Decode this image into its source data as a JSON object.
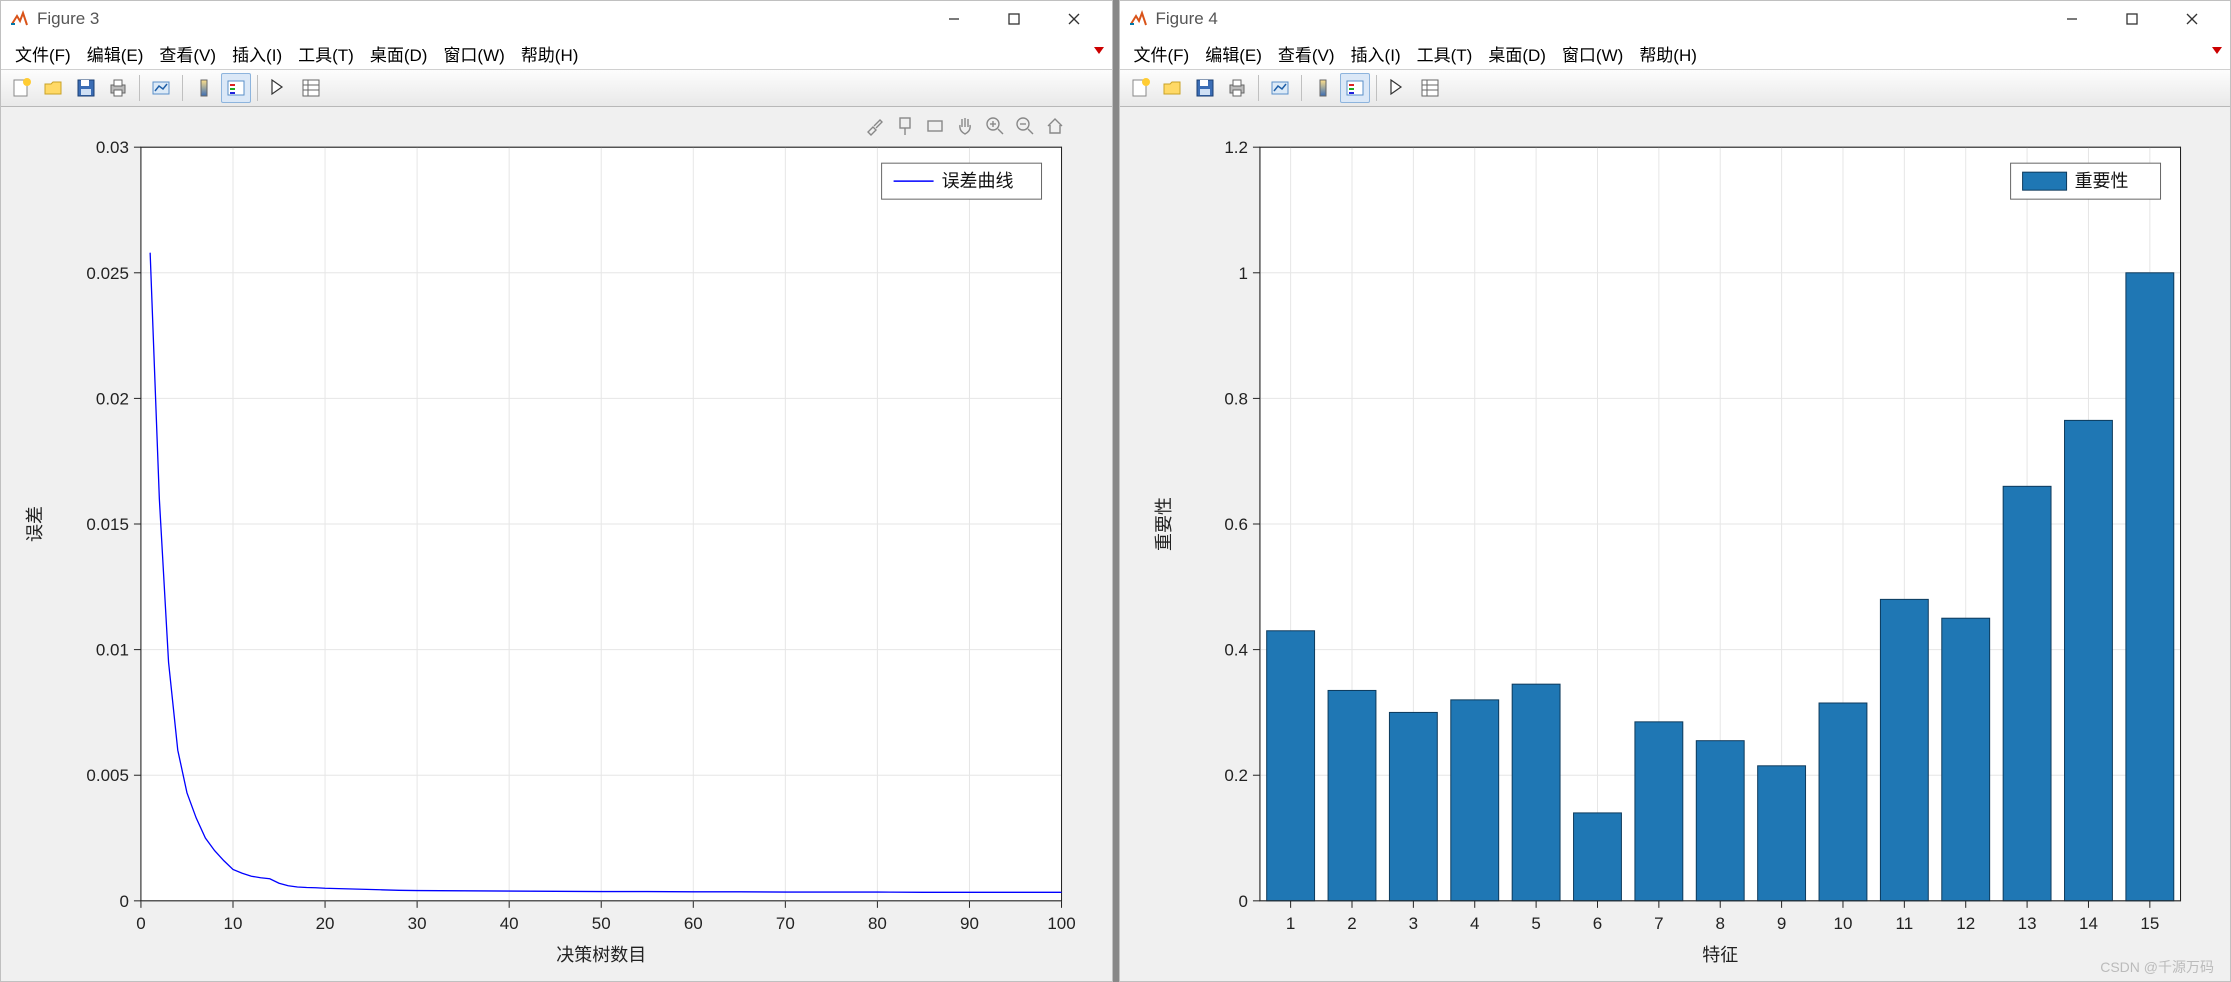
{
  "figure3": {
    "title": "Figure 3",
    "menubar": [
      "文件(F)",
      "编辑(E)",
      "查看(V)",
      "插入(I)",
      "工具(T)",
      "桌面(D)",
      "窗口(W)",
      "帮助(H)"
    ],
    "chart": {
      "type": "line",
      "legend": "误差曲线",
      "xlabel": "决策树数目",
      "ylabel": "误差",
      "xlim": [
        0,
        100
      ],
      "ylim": [
        0,
        0.03
      ],
      "xtick_step": 10,
      "ytick_step": 0.005,
      "xtick_labels": [
        "0",
        "10",
        "20",
        "30",
        "40",
        "50",
        "60",
        "70",
        "80",
        "90",
        "100"
      ],
      "ytick_labels": [
        "0",
        "0.005",
        "0.01",
        "0.015",
        "0.02",
        "0.025",
        "0.03"
      ],
      "line_color": "#0000ff",
      "line_width": 1.3,
      "background_color": "#ffffff",
      "grid_color": "#e6e6e6",
      "label_fontsize": 18,
      "tick_fontsize": 17,
      "x": [
        1,
        2,
        3,
        4,
        5,
        6,
        7,
        8,
        9,
        10,
        11,
        12,
        13,
        14,
        15,
        16,
        17,
        18,
        19,
        20,
        22,
        24,
        26,
        28,
        30,
        35,
        40,
        45,
        50,
        55,
        60,
        65,
        70,
        75,
        80,
        85,
        90,
        95,
        100
      ],
      "y": [
        0.0258,
        0.016,
        0.0095,
        0.006,
        0.0043,
        0.0033,
        0.0025,
        0.002,
        0.0016,
        0.00125,
        0.0011,
        0.00098,
        0.00092,
        0.00088,
        0.0007,
        0.0006,
        0.00055,
        0.00053,
        0.00052,
        0.0005,
        0.00048,
        0.00046,
        0.00044,
        0.00042,
        0.00041,
        0.0004,
        0.00039,
        0.00038,
        0.00037,
        0.00037,
        0.00036,
        0.00036,
        0.00035,
        0.00035,
        0.00035,
        0.00034,
        0.00034,
        0.00034,
        0.00034
      ]
    }
  },
  "figure4": {
    "title": "Figure 4",
    "menubar": [
      "文件(F)",
      "编辑(E)",
      "查看(V)",
      "插入(I)",
      "工具(T)",
      "桌面(D)",
      "窗口(W)",
      "帮助(H)"
    ],
    "chart": {
      "type": "bar",
      "legend": "重要性",
      "xlabel": "特征",
      "ylabel": "重要性",
      "xlim": [
        0.5,
        15.5
      ],
      "ylim": [
        0,
        1.2
      ],
      "ytick_step": 0.2,
      "ytick_labels": [
        "0",
        "0.2",
        "0.4",
        "0.6",
        "0.8",
        "1",
        "1.2"
      ],
      "categories": [
        "1",
        "2",
        "3",
        "4",
        "5",
        "6",
        "7",
        "8",
        "9",
        "10",
        "11",
        "12",
        "13",
        "14",
        "15"
      ],
      "values": [
        0.43,
        0.335,
        0.3,
        0.32,
        0.345,
        0.14,
        0.285,
        0.255,
        0.215,
        0.315,
        0.48,
        0.45,
        0.66,
        0.765,
        1.0
      ],
      "bar_color": "#1f77b4",
      "bar_edge_color": "#0d3a5c",
      "bar_width": 0.78,
      "background_color": "#ffffff",
      "grid_color": "#e6e6e6",
      "label_fontsize": 18,
      "tick_fontsize": 17
    }
  },
  "watermark": "CSDN @千源万码"
}
